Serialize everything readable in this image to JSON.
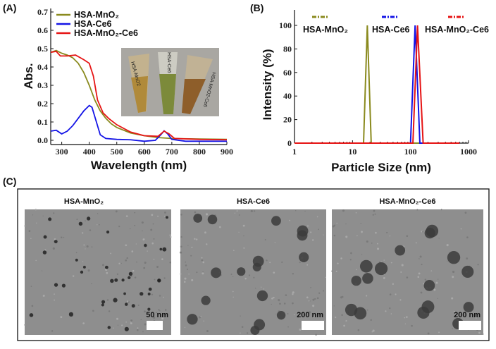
{
  "panels": {
    "a": "(A)",
    "b": "(B)",
    "c": "(C)"
  },
  "chart_data": [
    {
      "type": "line",
      "xlabel": "Wavelength (nm)",
      "ylabel": "Abs.",
      "xlim": [
        260,
        900
      ],
      "ylim": [
        -0.02,
        0.7
      ],
      "xticks": [
        300,
        400,
        500,
        600,
        700,
        800,
        900
      ],
      "xtick_labels": [
        "300",
        "400",
        "500",
        "600",
        "700",
        "800",
        "900"
      ],
      "yticks": [
        0,
        0.1,
        0.2,
        0.3,
        0.4,
        0.5,
        0.6,
        0.7
      ],
      "ytick_labels": [
        "0.0",
        "0.1",
        "0.2",
        "0.3",
        "0.4",
        "0.5",
        "0.6",
        "0.7"
      ],
      "legend_position": "top-left",
      "inset_photo_labels": [
        "HSA-MnO2",
        "HSA-Ce6",
        "HSA-MnO2-Ce6"
      ],
      "series": [
        {
          "name": "HSA-MnO₂",
          "color": "#8a8a1e",
          "x": [
            260,
            280,
            300,
            320,
            340,
            360,
            380,
            400,
            420,
            440,
            460,
            480,
            500,
            550,
            600,
            650,
            700,
            800,
            900
          ],
          "y": [
            0.48,
            0.49,
            0.475,
            0.465,
            0.45,
            0.42,
            0.37,
            0.3,
            0.22,
            0.16,
            0.12,
            0.09,
            0.07,
            0.04,
            0.025,
            0.015,
            0.01,
            0.007,
            0.005
          ]
        },
        {
          "name": "HSA-Ce6",
          "color": "#1414e6",
          "x": [
            260,
            280,
            300,
            320,
            340,
            360,
            380,
            400,
            410,
            420,
            440,
            460,
            500,
            550,
            600,
            640,
            660,
            672,
            685,
            700,
            750,
            900
          ],
          "y": [
            0.05,
            0.055,
            0.035,
            0.05,
            0.08,
            0.12,
            0.16,
            0.19,
            0.18,
            0.13,
            0.03,
            0.01,
            0.005,
            0.003,
            -0.005,
            0.0,
            0.03,
            0.052,
            0.035,
            0.005,
            -0.005,
            -0.005
          ]
        },
        {
          "name": "HSA-MnO₂-Ce6",
          "color": "#e61414",
          "x": [
            260,
            280,
            295,
            320,
            350,
            380,
            400,
            415,
            430,
            450,
            470,
            500,
            550,
            600,
            650,
            672,
            690,
            710,
            800,
            900
          ],
          "y": [
            0.48,
            0.485,
            0.46,
            0.46,
            0.465,
            0.44,
            0.42,
            0.35,
            0.22,
            0.15,
            0.12,
            0.085,
            0.045,
            0.025,
            0.022,
            0.05,
            0.035,
            0.01,
            0.005,
            0.003
          ]
        }
      ]
    },
    {
      "type": "line",
      "xlabel": "Particle Size (nm)",
      "ylabel": "Intensity (%)",
      "xscale": "log",
      "xlim": [
        1,
        1000
      ],
      "ylim": [
        0,
        110
      ],
      "xticks": [
        1,
        10,
        100,
        1000
      ],
      "xtick_labels": [
        "1",
        "10",
        "100",
        "1000"
      ],
      "yticks": [
        0,
        20,
        40,
        60,
        80,
        100
      ],
      "ytick_labels": [
        "0",
        "20",
        "40",
        "60",
        "80",
        "100"
      ],
      "legend_position": "top",
      "series": [
        {
          "name": "HSA-MnO₂",
          "color": "#8a8a1e",
          "x": [
            1,
            15.5,
            18,
            21,
            700
          ],
          "y": [
            0,
            0,
            100,
            0,
            0
          ]
        },
        {
          "name": "HSA-Ce6",
          "color": "#1414e6",
          "x": [
            1,
            100,
            120,
            145,
            700
          ],
          "y": [
            0,
            0,
            100,
            0,
            0
          ]
        },
        {
          "name": "HSA-MnO₂-Ce6",
          "color": "#e61414",
          "x": [
            1,
            110,
            132,
            165,
            700
          ],
          "y": [
            0,
            0,
            100,
            0,
            0
          ]
        }
      ]
    }
  ],
  "tem": [
    {
      "title": "HSA-MnO₂",
      "scale": "50 nm"
    },
    {
      "title": "HSA-Ce6",
      "scale": "200 nm"
    },
    {
      "title": "HSA-MnO₂-Ce6",
      "scale": "200 nm"
    }
  ]
}
